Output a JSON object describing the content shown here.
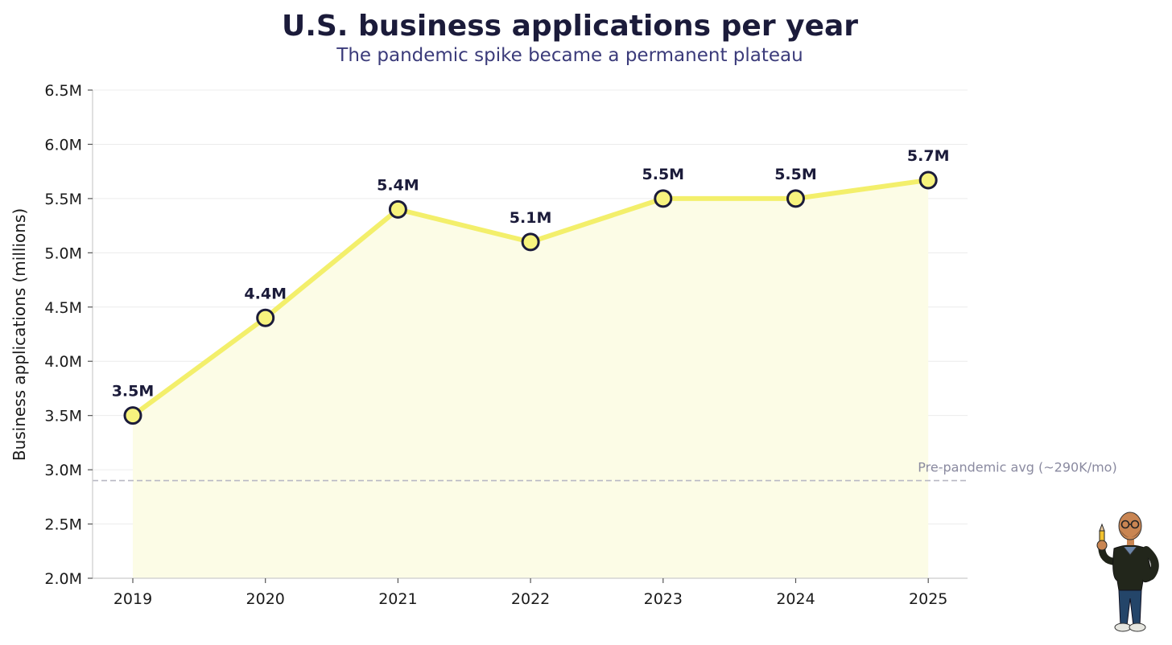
{
  "chart_data": {
    "type": "line",
    "title": "U.S. business applications per year",
    "subtitle": "The pandemic spike became a permanent plateau",
    "xlabel": "",
    "ylabel": "Business applications (millions)",
    "x": [
      "2019",
      "2020",
      "2021",
      "2022",
      "2023",
      "2024",
      "2025"
    ],
    "values": [
      3.5,
      4.4,
      5.4,
      5.1,
      5.5,
      5.5,
      5.67
    ],
    "data_labels": [
      "3.5M",
      "4.4M",
      "5.4M",
      "5.1M",
      "5.5M",
      "5.5M",
      "5.7M"
    ],
    "ylim": [
      2.0,
      6.5
    ],
    "yticks": [
      2.0,
      2.5,
      3.0,
      3.5,
      4.0,
      4.5,
      5.0,
      5.5,
      6.0,
      6.5
    ],
    "ytick_labels": [
      "2.0M",
      "2.5M",
      "3.0M",
      "3.5M",
      "4.0M",
      "4.5M",
      "5.0M",
      "5.5M",
      "6.0M",
      "6.5M"
    ],
    "reference_line": {
      "value": 2.9,
      "label": "Pre-pandemic avg (~290K/mo)"
    },
    "grid": true,
    "legend": "none"
  },
  "colors": {
    "title": "#1b1b3a",
    "subtitle": "#3b3b7a",
    "line": "#f3ef6b",
    "fill": "#fcfce6",
    "marker_fill": "#f7f37e",
    "marker_edge": "#1b1b3a",
    "text": "#1a1a1a",
    "grid": "#ececec",
    "axis": "#cccccc",
    "ref_line": "#b8b8c4",
    "ref_text": "#8a8aa0"
  },
  "mascot": {
    "icon": "person-holding-pencil-icon"
  }
}
